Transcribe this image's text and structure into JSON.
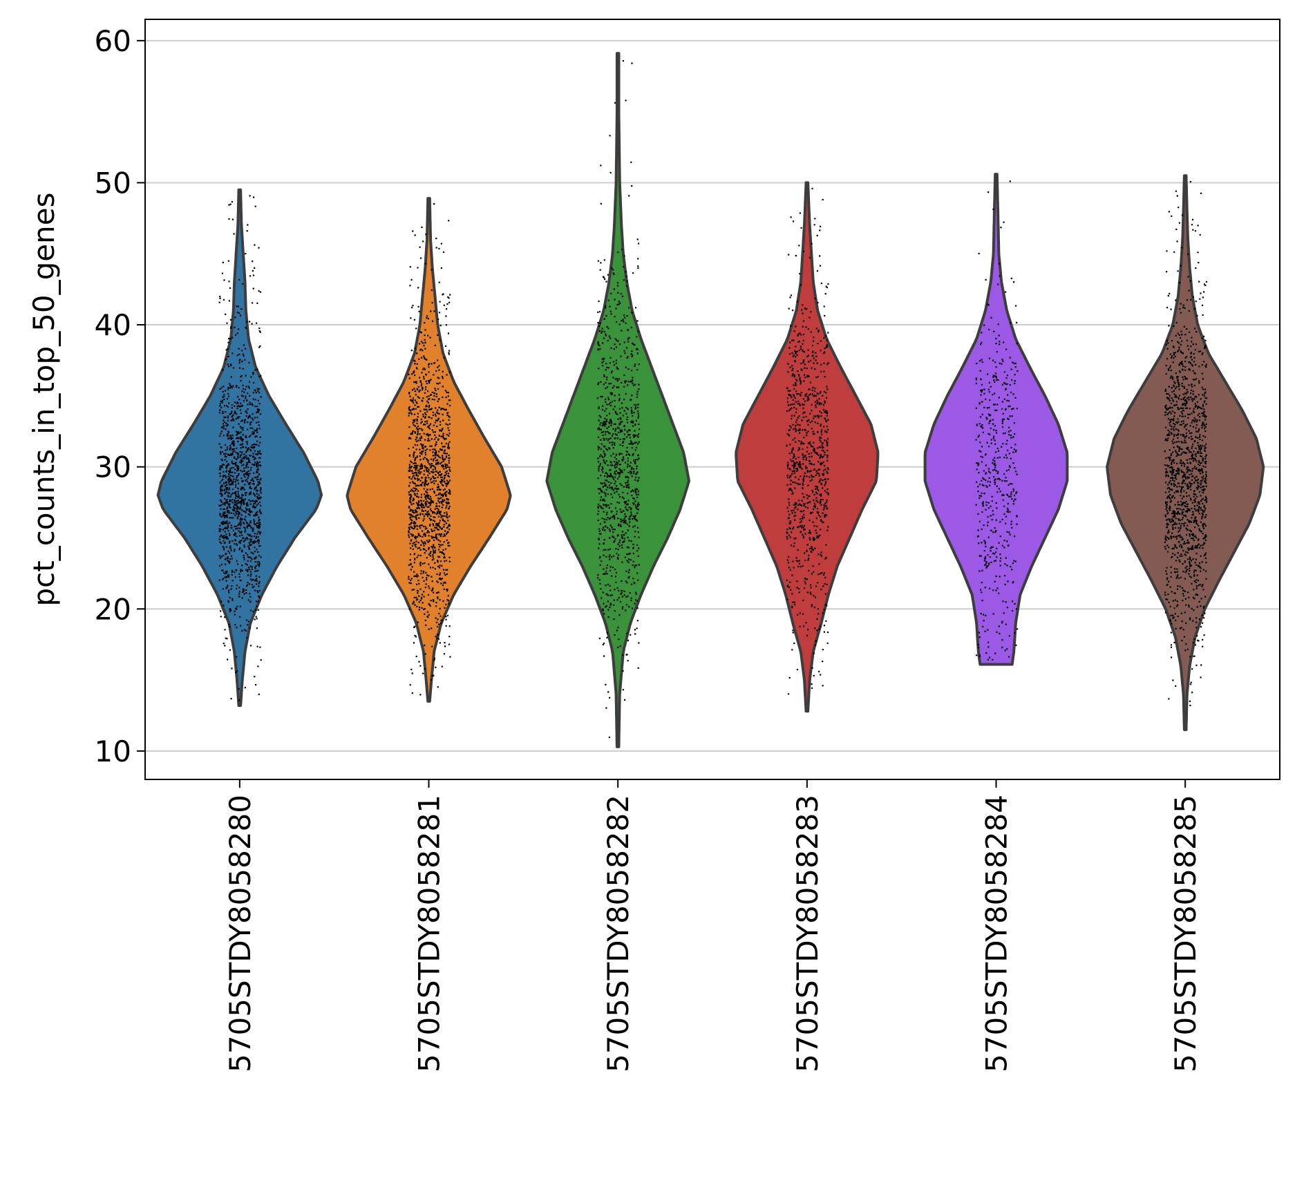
{
  "chart_data": {
    "type": "violin",
    "title": "",
    "xlabel": "",
    "ylabel": "pct_counts_in_top_50_genes",
    "ylim": [
      8,
      61.5
    ],
    "yticks": [
      10,
      20,
      30,
      40,
      50,
      60
    ],
    "grid": "horizontal",
    "categories": [
      "5705STDY8058280",
      "5705STDY8058281",
      "5705STDY8058282",
      "5705STDY8058283",
      "5705STDY8058284",
      "5705STDY8058285"
    ],
    "colors": [
      "#3274a1",
      "#e1812c",
      "#3a923a",
      "#c03d3e",
      "#9b59e6",
      "#845b53"
    ],
    "series": [
      {
        "category": "5705STDY8058280",
        "min": 13.2,
        "max": 49.5,
        "median": 28.5,
        "point_count": 1400,
        "profile": [
          [
            13.2,
            0.01
          ],
          [
            15,
            0.03
          ],
          [
            17,
            0.06
          ],
          [
            19,
            0.12
          ],
          [
            21,
            0.25
          ],
          [
            23,
            0.42
          ],
          [
            25,
            0.62
          ],
          [
            27,
            0.86
          ],
          [
            28,
            0.92
          ],
          [
            29,
            0.88
          ],
          [
            31,
            0.72
          ],
          [
            33,
            0.52
          ],
          [
            35,
            0.33
          ],
          [
            37,
            0.18
          ],
          [
            39,
            0.1
          ],
          [
            41,
            0.07
          ],
          [
            43,
            0.06
          ],
          [
            45,
            0.04
          ],
          [
            47,
            0.02
          ],
          [
            49.5,
            0.01
          ]
        ]
      },
      {
        "category": "5705STDY8058281",
        "min": 13.5,
        "max": 48.9,
        "median": 28.3,
        "point_count": 1400,
        "profile": [
          [
            13.5,
            0.01
          ],
          [
            15,
            0.03
          ],
          [
            17,
            0.06
          ],
          [
            19,
            0.14
          ],
          [
            21,
            0.28
          ],
          [
            23,
            0.47
          ],
          [
            25,
            0.68
          ],
          [
            27,
            0.88
          ],
          [
            28,
            0.92
          ],
          [
            30,
            0.82
          ],
          [
            32,
            0.63
          ],
          [
            34,
            0.45
          ],
          [
            36,
            0.28
          ],
          [
            38,
            0.16
          ],
          [
            40,
            0.1
          ],
          [
            42,
            0.07
          ],
          [
            44,
            0.04
          ],
          [
            46,
            0.02
          ],
          [
            48.9,
            0.01
          ]
        ]
      },
      {
        "category": "5705STDY8058282",
        "min": 10.3,
        "max": 59.1,
        "median": 30.0,
        "point_count": 1000,
        "profile": [
          [
            10.3,
            0.01
          ],
          [
            14,
            0.02
          ],
          [
            17,
            0.06
          ],
          [
            19,
            0.14
          ],
          [
            21,
            0.26
          ],
          [
            23,
            0.4
          ],
          [
            25,
            0.56
          ],
          [
            27,
            0.7
          ],
          [
            29,
            0.8
          ],
          [
            31,
            0.74
          ],
          [
            33,
            0.62
          ],
          [
            35,
            0.5
          ],
          [
            37,
            0.38
          ],
          [
            39,
            0.26
          ],
          [
            41,
            0.16
          ],
          [
            43,
            0.1
          ],
          [
            45,
            0.06
          ],
          [
            47,
            0.04
          ],
          [
            50,
            0.02
          ],
          [
            55,
            0.01
          ],
          [
            59.1,
            0.01
          ]
        ]
      },
      {
        "category": "5705STDY8058283",
        "min": 12.8,
        "max": 50.0,
        "median": 30.0,
        "point_count": 900,
        "profile": [
          [
            12.8,
            0.01
          ],
          [
            15,
            0.03
          ],
          [
            17,
            0.07
          ],
          [
            19,
            0.16
          ],
          [
            21,
            0.24
          ],
          [
            23,
            0.34
          ],
          [
            25,
            0.48
          ],
          [
            27,
            0.62
          ],
          [
            29,
            0.78
          ],
          [
            31,
            0.8
          ],
          [
            33,
            0.72
          ],
          [
            35,
            0.55
          ],
          [
            37,
            0.38
          ],
          [
            39,
            0.22
          ],
          [
            41,
            0.12
          ],
          [
            43,
            0.07
          ],
          [
            45,
            0.05
          ],
          [
            47,
            0.03
          ],
          [
            50,
            0.01
          ]
        ]
      },
      {
        "category": "5705STDY8058284",
        "min": 16.1,
        "max": 50.6,
        "median": 30.5,
        "point_count": 500,
        "profile": [
          [
            16.1,
            0.18
          ],
          [
            17,
            0.2
          ],
          [
            19,
            0.22
          ],
          [
            21,
            0.27
          ],
          [
            23,
            0.4
          ],
          [
            25,
            0.55
          ],
          [
            27,
            0.7
          ],
          [
            29,
            0.8
          ],
          [
            31,
            0.8
          ],
          [
            33,
            0.7
          ],
          [
            35,
            0.55
          ],
          [
            37,
            0.38
          ],
          [
            39,
            0.22
          ],
          [
            41,
            0.12
          ],
          [
            43,
            0.06
          ],
          [
            45,
            0.03
          ],
          [
            48,
            0.02
          ],
          [
            50.6,
            0.01
          ]
        ]
      },
      {
        "category": "5705STDY8058285",
        "min": 11.5,
        "max": 50.5,
        "median": 29.5,
        "point_count": 1400,
        "profile": [
          [
            11.5,
            0.01
          ],
          [
            14,
            0.02
          ],
          [
            16,
            0.05
          ],
          [
            18,
            0.11
          ],
          [
            20,
            0.22
          ],
          [
            22,
            0.38
          ],
          [
            24,
            0.55
          ],
          [
            26,
            0.72
          ],
          [
            28,
            0.84
          ],
          [
            30,
            0.88
          ],
          [
            32,
            0.8
          ],
          [
            34,
            0.64
          ],
          [
            36,
            0.45
          ],
          [
            38,
            0.26
          ],
          [
            40,
            0.14
          ],
          [
            42,
            0.08
          ],
          [
            44,
            0.05
          ],
          [
            46,
            0.03
          ],
          [
            48,
            0.02
          ],
          [
            50.5,
            0.01
          ]
        ]
      }
    ]
  }
}
